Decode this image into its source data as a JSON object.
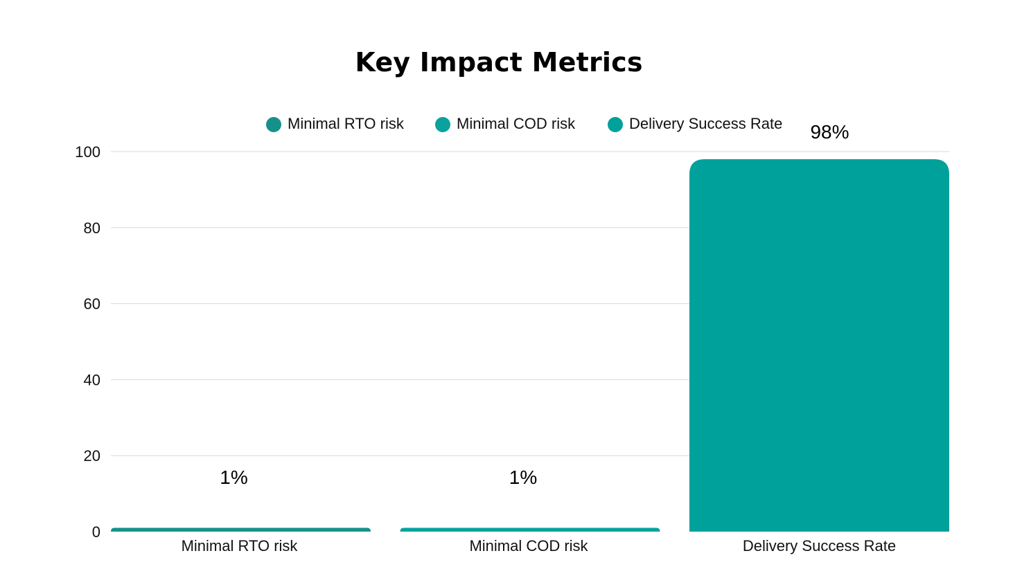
{
  "chart_data": {
    "type": "bar",
    "title": "Key Impact Metrics",
    "categories": [
      "Minimal RTO risk",
      "Minimal COD risk",
      "Delivery Success Rate"
    ],
    "values": [
      1,
      1,
      98
    ],
    "value_labels": [
      "1%",
      "1%",
      "98%"
    ],
    "colors": [
      "#16918a",
      "#0aa29d",
      "#00a19b"
    ],
    "legend": {
      "placement": "top",
      "entries": [
        "Minimal RTO risk",
        "Minimal COD risk",
        "Delivery Success Rate"
      ]
    },
    "ylim": [
      0,
      100
    ],
    "yticks": [
      0,
      20,
      40,
      60,
      80,
      100
    ],
    "grid": true,
    "xlabel": "",
    "ylabel": ""
  }
}
